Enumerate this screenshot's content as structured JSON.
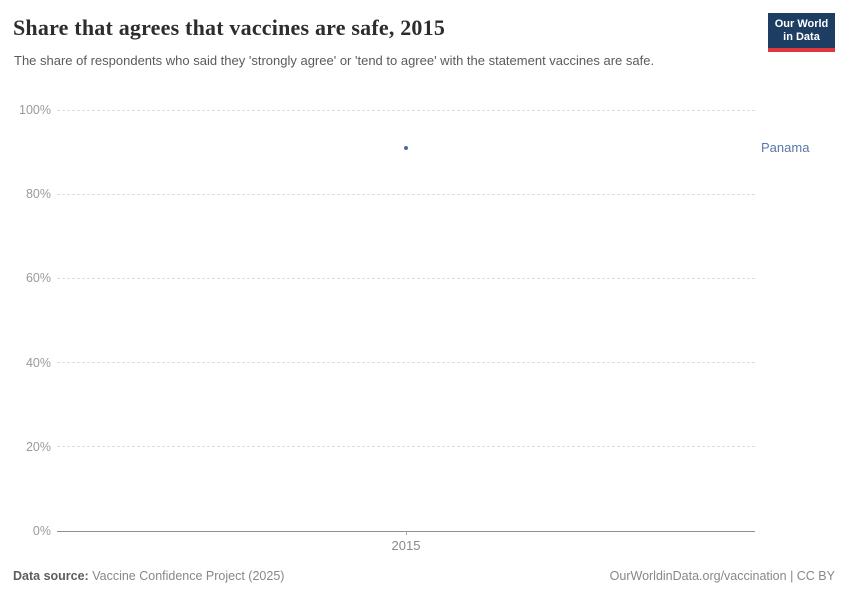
{
  "header": {
    "title": "Share that agrees that vaccines are safe, 2015",
    "subtitle": "The share of respondents who said they 'strongly agree' or 'tend to agree' with the statement vaccines are safe.",
    "logo": {
      "line1": "Our World",
      "line2": "in Data"
    }
  },
  "chart_data": {
    "type": "scatter",
    "title": "Share that agrees that vaccines are safe, 2015",
    "x": [
      2015
    ],
    "series": [
      {
        "name": "Panama",
        "values": [
          91
        ]
      }
    ],
    "ylim": [
      0,
      100
    ],
    "yticks": [
      0,
      20,
      40,
      60,
      80,
      100
    ],
    "ytick_suffix": "%",
    "xticks": [
      "2015"
    ],
    "grid": "horizontal-dashed",
    "legend_position": "right-of-point",
    "series_color": "#4d6a9f",
    "entity_label_color": "#5878ab"
  },
  "footer": {
    "source_label": "Data source:",
    "source_text": " Vaccine Confidence Project (2025)",
    "right_text": "OurWorldinData.org/vaccination | CC BY"
  },
  "colors": {
    "logo_bg": "#1d3d63",
    "logo_accent": "#e0363c",
    "grid": "#dcdcdc",
    "axis": "#8f8f8f"
  }
}
